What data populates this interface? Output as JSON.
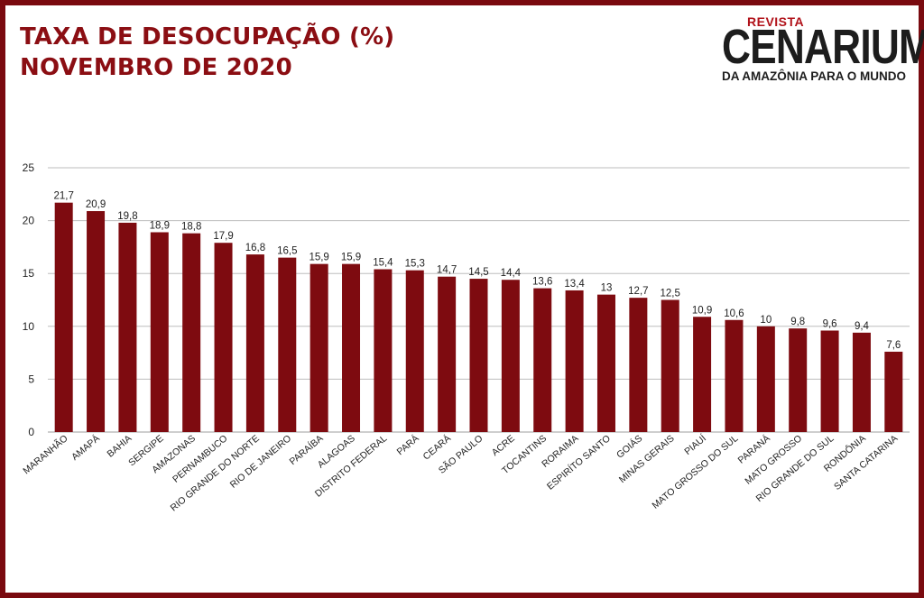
{
  "header": {
    "title_line1": "TAXA DE DESOCUPAÇÃO (%)",
    "title_line2": "NOVEMBRO DE 2020"
  },
  "logo": {
    "kicker": "REVISTA",
    "name": "CENARIUM",
    "tagline": "DA AMAZÔNIA PARA O MUNDO"
  },
  "colors": {
    "bar": "#7e0b10",
    "frame": "#7a0a0f",
    "title": "#8b0e13",
    "grid": "#bdbdbd"
  },
  "chart_data": {
    "type": "bar",
    "title": "TAXA DE DESOCUPAÇÃO (%) NOVEMBRO DE 2020",
    "xlabel": "",
    "ylabel": "",
    "ylim": [
      0,
      25
    ],
    "yticks": [
      0,
      5,
      10,
      15,
      20,
      25
    ],
    "grid": true,
    "categories": [
      "MARANHÃO",
      "AMAPÁ",
      "BAHIA",
      "SERGIPE",
      "AMAZONAS",
      "PERNAMBUCO",
      "RIO GRANDE DO NORTE",
      "RIO DE JANEIRO",
      "PARAÍBA",
      "ALAGOAS",
      "DISTRITO FEDERAL",
      "PARÁ",
      "CEARÁ",
      "SÃO PAULO",
      "ACRE",
      "TOCANTINS",
      "RORAIMA",
      "ESPIRÍTO SANTO",
      "GOIÁS",
      "MINAS GERAIS",
      "PIAUÍ",
      "MATO GROSSO DO SUL",
      "PARANÁ",
      "MATO GROSSO",
      "RIO GRANDE DO SUL",
      "RONDÔNIA",
      "SANTA CATARINA"
    ],
    "values": [
      21.7,
      20.9,
      19.8,
      18.9,
      18.8,
      17.9,
      16.8,
      16.5,
      15.9,
      15.9,
      15.4,
      15.3,
      14.7,
      14.5,
      14.4,
      13.6,
      13.4,
      13,
      12.7,
      12.5,
      10.9,
      10.6,
      10,
      9.8,
      9.6,
      9.4,
      7.6
    ],
    "value_labels": [
      "21,7",
      "20,9",
      "19,8",
      "18,9",
      "18,8",
      "17,9",
      "16,8",
      "16,5",
      "15,9",
      "15,9",
      "15,4",
      "15,3",
      "14,7",
      "14,5",
      "14,4",
      "13,6",
      "13,4",
      "13",
      "12,7",
      "12,5",
      "10,9",
      "10,6",
      "10",
      "9,8",
      "9,6",
      "9,4",
      "7,6"
    ]
  }
}
